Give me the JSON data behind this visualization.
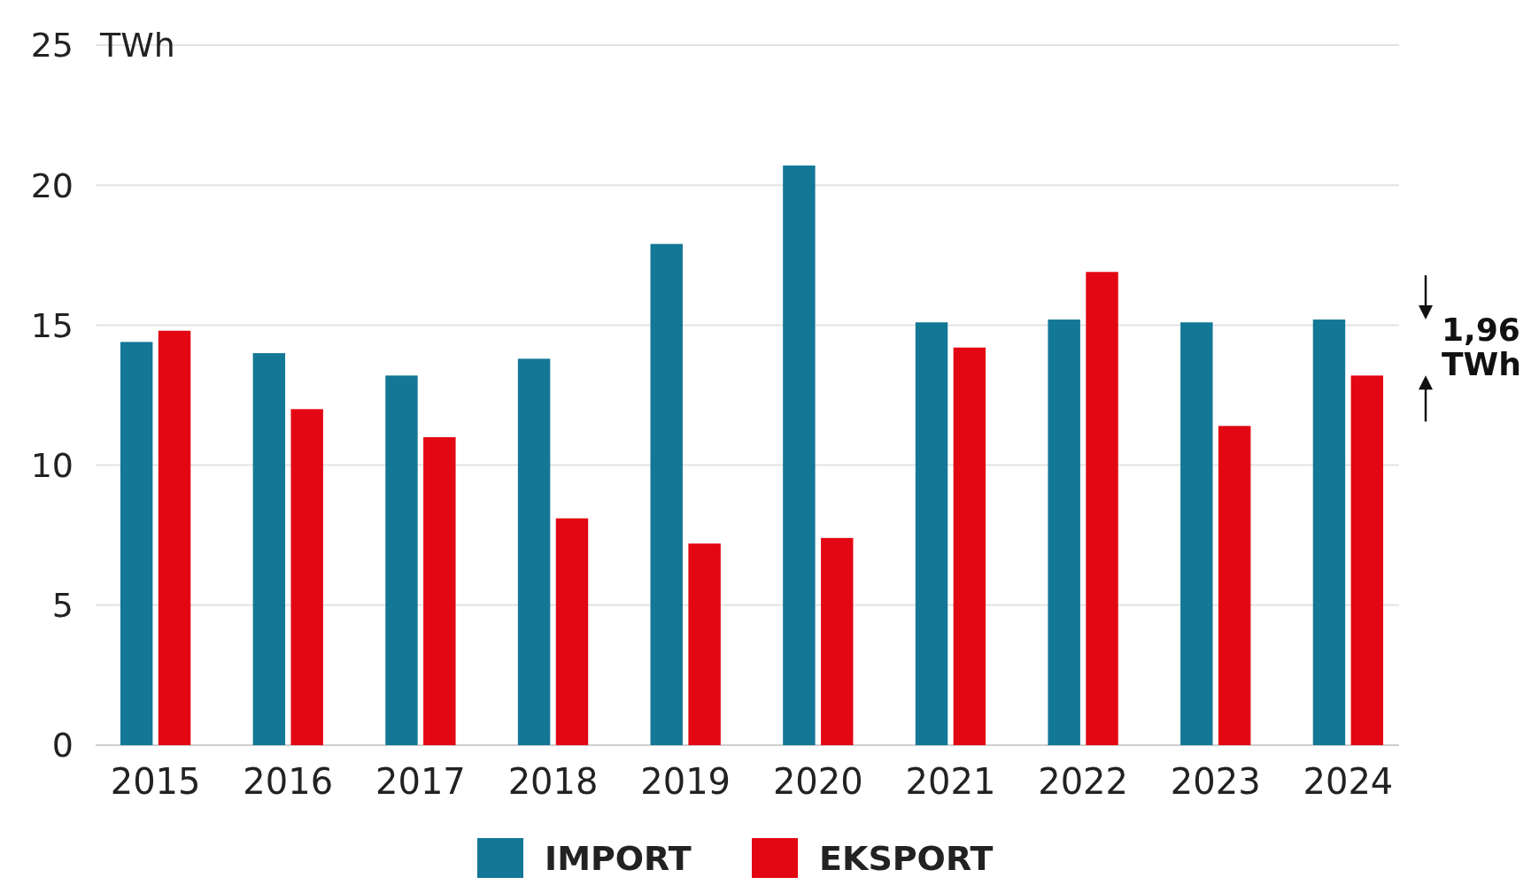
{
  "chart_data": {
    "type": "bar",
    "ylabel": "TWh",
    "categories": [
      "2015",
      "2016",
      "2017",
      "2018",
      "2019",
      "2020",
      "2021",
      "2022",
      "2023",
      "2024"
    ],
    "series": [
      {
        "name": "IMPORT",
        "color": "#137796",
        "values": [
          14.4,
          14.0,
          13.2,
          13.8,
          17.9,
          20.7,
          15.1,
          15.2,
          15.1,
          15.2
        ]
      },
      {
        "name": "EKSPORT",
        "color": "#e30613",
        "values": [
          14.8,
          12.0,
          11.0,
          8.1,
          7.2,
          7.4,
          14.2,
          16.9,
          11.4,
          13.2
        ]
      }
    ],
    "ylim": [
      0,
      25
    ],
    "yticks": [
      0,
      5,
      10,
      15,
      20,
      25
    ],
    "grid": "y",
    "legend": "bottom",
    "annotations": [
      "1,96 TWh"
    ]
  }
}
